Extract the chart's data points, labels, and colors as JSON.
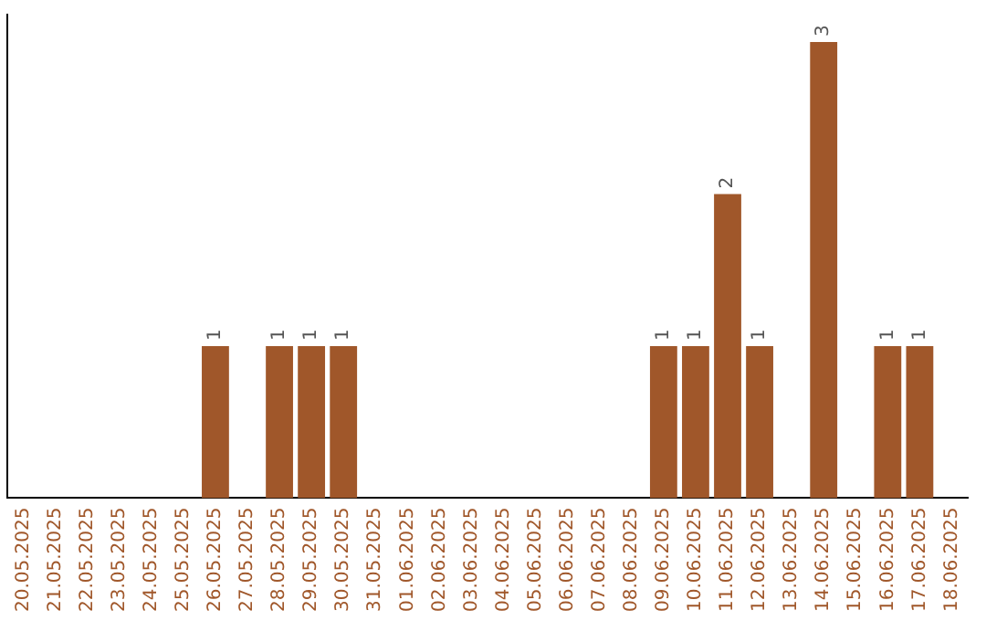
{
  "chart_data": {
    "type": "bar",
    "categories": [
      "20.05.2025",
      "21.05.2025",
      "22.05.2025",
      "23.05.2025",
      "24.05.2025",
      "25.05.2025",
      "26.05.2025",
      "27.05.2025",
      "28.05.2025",
      "29.05.2025",
      "30.05.2025",
      "31.05.2025",
      "01.06.2025",
      "02.06.2025",
      "03.06.2025",
      "04.06.2025",
      "05.06.2025",
      "06.06.2025",
      "07.06.2025",
      "08.06.2025",
      "09.06.2025",
      "10.06.2025",
      "11.06.2025",
      "12.06.2025",
      "13.06.2025",
      "14.06.2025",
      "15.06.2025",
      "16.06.2025",
      "17.06.2025",
      "18.06.2025"
    ],
    "values": [
      0,
      0,
      0,
      0,
      0,
      0,
      1,
      0,
      1,
      1,
      1,
      0,
      0,
      0,
      0,
      0,
      0,
      0,
      0,
      0,
      1,
      1,
      2,
      1,
      0,
      3,
      0,
      1,
      1,
      0
    ],
    "value_labels": [
      null,
      null,
      null,
      null,
      null,
      null,
      "1",
      null,
      "1",
      "1",
      "1",
      null,
      null,
      null,
      null,
      null,
      null,
      null,
      null,
      null,
      "1",
      "1",
      "2",
      "1",
      null,
      "3",
      null,
      "1",
      "1",
      null
    ],
    "color": "#a0572a",
    "grid": false,
    "legend": false,
    "tick_labels": "x"
  }
}
